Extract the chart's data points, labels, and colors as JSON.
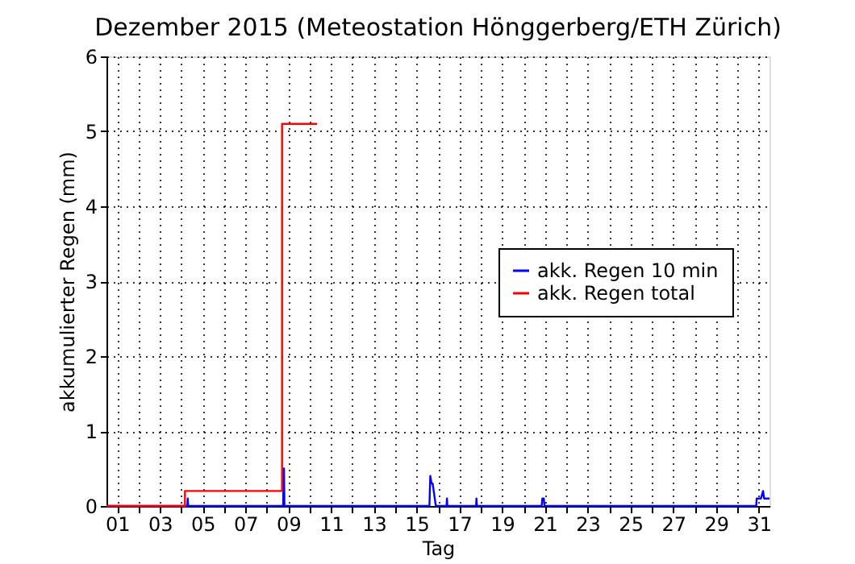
{
  "chart_data": {
    "type": "line",
    "title": "Dezember 2015  (Meteostation Hönggerberg/ETH Zürich)",
    "xlabel": "Tag",
    "ylabel": "akkumulierter Regen (mm)",
    "xlim": [
      0.5,
      31.5
    ],
    "xticks": [
      {
        "value": 1,
        "label": "01"
      },
      {
        "value": 2,
        "label": null
      },
      {
        "value": 3,
        "label": "03"
      },
      {
        "value": 4,
        "label": null
      },
      {
        "value": 5,
        "label": "05"
      },
      {
        "value": 6,
        "label": null
      },
      {
        "value": 7,
        "label": "07"
      },
      {
        "value": 8,
        "label": null
      },
      {
        "value": 9,
        "label": "09"
      },
      {
        "value": 10,
        "label": null
      },
      {
        "value": 11,
        "label": "11"
      },
      {
        "value": 12,
        "label": null
      },
      {
        "value": 13,
        "label": "13"
      },
      {
        "value": 14,
        "label": null
      },
      {
        "value": 15,
        "label": "15"
      },
      {
        "value": 16,
        "label": null
      },
      {
        "value": 17,
        "label": "17"
      },
      {
        "value": 18,
        "label": null
      },
      {
        "value": 19,
        "label": "19"
      },
      {
        "value": 20,
        "label": null
      },
      {
        "value": 21,
        "label": "21"
      },
      {
        "value": 22,
        "label": null
      },
      {
        "value": 23,
        "label": "23"
      },
      {
        "value": 24,
        "label": null
      },
      {
        "value": 25,
        "label": "25"
      },
      {
        "value": 26,
        "label": null
      },
      {
        "value": 27,
        "label": "27"
      },
      {
        "value": 28,
        "label": null
      },
      {
        "value": 29,
        "label": "29"
      },
      {
        "value": 30,
        "label": null
      },
      {
        "value": 31,
        "label": "31"
      }
    ],
    "ylim": [
      0,
      6
    ],
    "yticks": [
      0,
      1,
      2,
      3,
      4,
      5,
      6
    ],
    "grid": true,
    "legend": "right",
    "line_style": "solid",
    "marker": "none",
    "series": [
      {
        "name": "akk. Regen 10 min",
        "color": "#0000ff",
        "type": "line",
        "x": [
          0.5,
          4.28,
          4.3,
          4.32,
          8.76,
          8.78,
          8.8,
          8.82,
          15.6,
          15.64,
          15.7,
          15.75,
          15.8,
          15.85,
          15.9,
          16.4,
          16.42,
          16.44,
          17.78,
          17.8,
          17.82,
          20.85,
          20.88,
          20.95,
          20.98,
          30.88,
          30.9,
          31.1,
          31.2,
          31.25,
          31.5
        ],
        "values": [
          0,
          0,
          0.1,
          0,
          0,
          0.5,
          0.5,
          0,
          0,
          0.4,
          0.3,
          0.3,
          0.2,
          0.1,
          0,
          0,
          0.1,
          0,
          0,
          0.1,
          0,
          0,
          0.1,
          0.1,
          0,
          0,
          0.1,
          0.1,
          0.2,
          0.1,
          0.1
        ]
      },
      {
        "name": "akk. Regen total",
        "color": "#ff0000",
        "type": "step",
        "x": [
          0.5,
          4.17,
          8.71,
          10.35
        ],
        "values": [
          0,
          0.2,
          5.1,
          5.1
        ]
      }
    ]
  }
}
